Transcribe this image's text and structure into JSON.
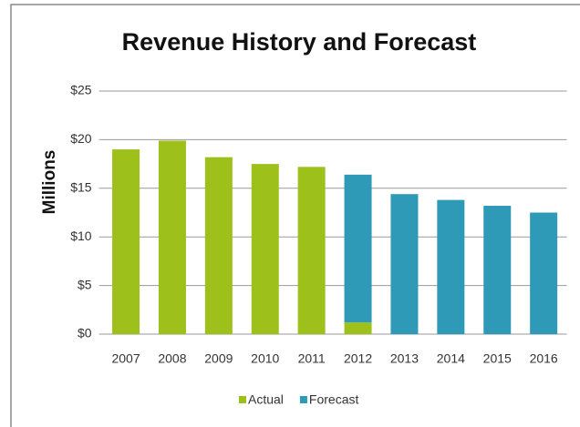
{
  "chart_data": {
    "type": "bar",
    "stacked": true,
    "title": "Revenue History and Forecast",
    "ylabel": "Millions",
    "categories": [
      "2007",
      "2008",
      "2009",
      "2010",
      "2011",
      "2012",
      "2013",
      "2014",
      "2015",
      "2016"
    ],
    "series": [
      {
        "name": "Actual",
        "color": "#9dc11a",
        "values": [
          19.0,
          19.9,
          18.2,
          17.5,
          17.2,
          1.2,
          null,
          null,
          null,
          null
        ]
      },
      {
        "name": "Forecast",
        "color": "#2e9ab8",
        "values": [
          null,
          null,
          null,
          null,
          null,
          15.2,
          14.4,
          13.8,
          13.2,
          12.5
        ]
      }
    ],
    "ylim": [
      0,
      25
    ],
    "yticks": [
      {
        "value": 0,
        "label": "$0"
      },
      {
        "value": 5,
        "label": "$5"
      },
      {
        "value": 10,
        "label": "$10"
      },
      {
        "value": 15,
        "label": "$15"
      },
      {
        "value": 20,
        "label": "$20"
      },
      {
        "value": 25,
        "label": "$25"
      }
    ],
    "grid": true,
    "legend": "bottom"
  }
}
